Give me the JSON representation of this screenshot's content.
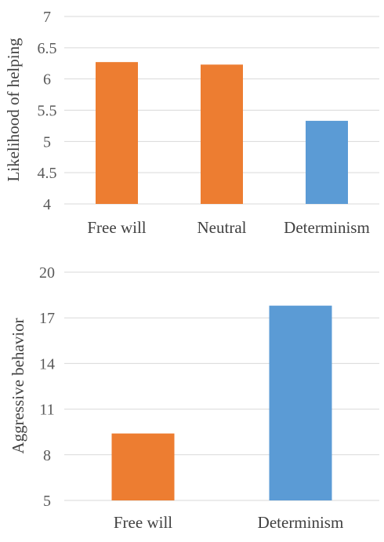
{
  "chart_data": [
    {
      "type": "bar",
      "title": "",
      "xlabel": "",
      "ylabel": "Likelihood of helping",
      "categories": [
        "Free will",
        "Neutral",
        "Determinism"
      ],
      "values": [
        6.27,
        6.23,
        5.33
      ],
      "bar_colors": [
        "#ED7D31",
        "#ED7D31",
        "#5B9BD5"
      ],
      "ylim": [
        4,
        7
      ],
      "yticks": [
        "4",
        "4.5",
        "5",
        "5.5",
        "6",
        "6.5",
        "7"
      ],
      "grid": true
    },
    {
      "type": "bar",
      "title": "",
      "xlabel": "",
      "ylabel": "Aggressive behavior",
      "categories": [
        "Free will",
        "Determinism"
      ],
      "values": [
        9.4,
        17.8
      ],
      "bar_colors": [
        "#ED7D31",
        "#5B9BD5"
      ],
      "ylim": [
        5,
        20
      ],
      "yticks": [
        "5",
        "8",
        "11",
        "14",
        "17",
        "20"
      ],
      "grid": true
    }
  ]
}
